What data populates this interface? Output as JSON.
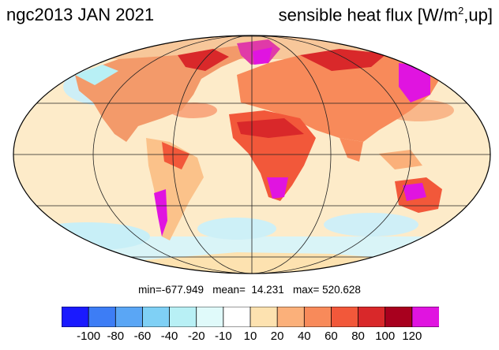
{
  "title": {
    "left": "ngc2013 JAN 2021",
    "right_prefix": "sensible heat flux [W/m",
    "right_sup": "2",
    "right_suffix": ",up]"
  },
  "stats": {
    "text": "min=-677.949   mean=  14.231   max= 520.628"
  },
  "colorbar": {
    "colors": [
      "#1a1aff",
      "#3d7df5",
      "#5aa6f5",
      "#7fd0f5",
      "#b8f0f5",
      "#e0fafa",
      "#ffffff",
      "#fde2b0",
      "#fbb07a",
      "#f88a5a",
      "#f2583a",
      "#d9282a",
      "#a8001e",
      "#e014e0"
    ],
    "labels": [
      "-100",
      "-80",
      "-60",
      "-40",
      "-20",
      "-10",
      "10",
      "20",
      "40",
      "60",
      "80",
      "100",
      "120"
    ]
  },
  "map": {
    "ocean_color": "#fde8c4",
    "grid_color": "#222222"
  }
}
